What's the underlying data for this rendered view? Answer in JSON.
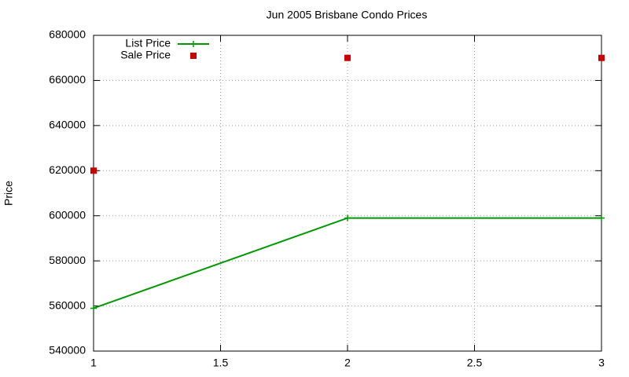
{
  "chart_data": {
    "type": "line",
    "title": "Jun 2005 Brisbane Condo Prices",
    "y_label": "Price",
    "x": [
      1,
      2,
      3
    ],
    "series": [
      {
        "name": "List Price",
        "color": "#009900",
        "style": "linespoints",
        "values": [
          559000,
          599000,
          599000
        ]
      },
      {
        "name": "Sale Price",
        "color": "#cc0000",
        "style": "points",
        "values": [
          620000,
          670000,
          670000
        ]
      }
    ],
    "xlim": [
      1,
      3
    ],
    "xticks": [
      1,
      1.5,
      2,
      2.5,
      3
    ],
    "ylim": [
      540000,
      680000
    ],
    "yticks": [
      540000,
      560000,
      580000,
      600000,
      620000,
      640000,
      660000,
      680000
    ],
    "grid": true,
    "legend": "top-left"
  }
}
